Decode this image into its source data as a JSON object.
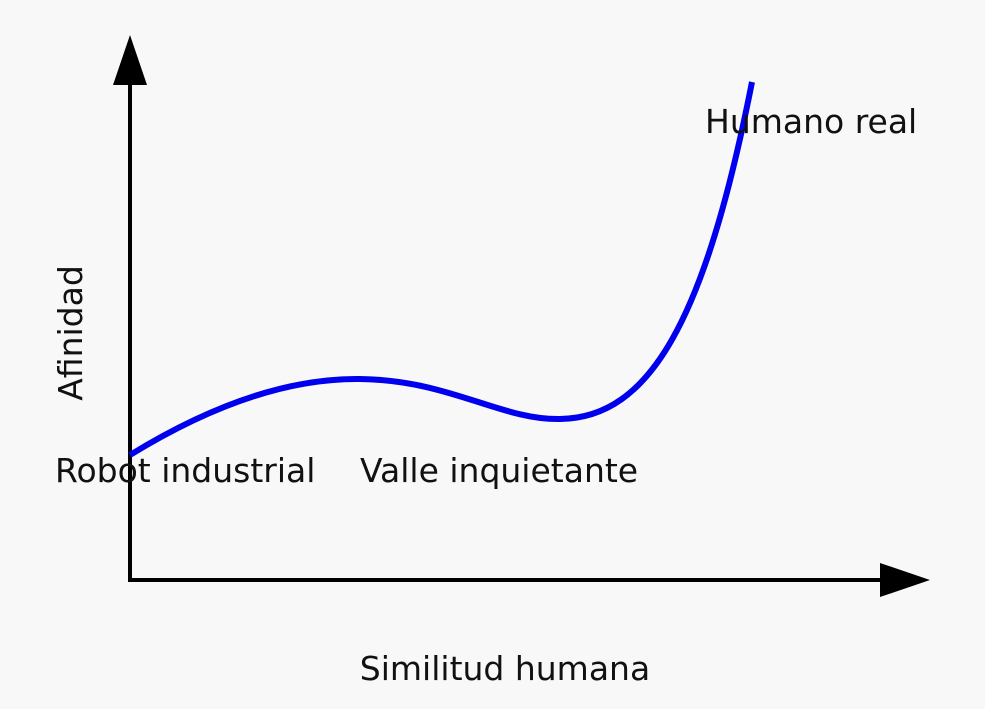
{
  "axes": {
    "x_label": "Similitud humana",
    "y_label": "Afinidad"
  },
  "annotations": [
    "Robot industrial",
    "Valle inquietante",
    "Humano real"
  ]
}
